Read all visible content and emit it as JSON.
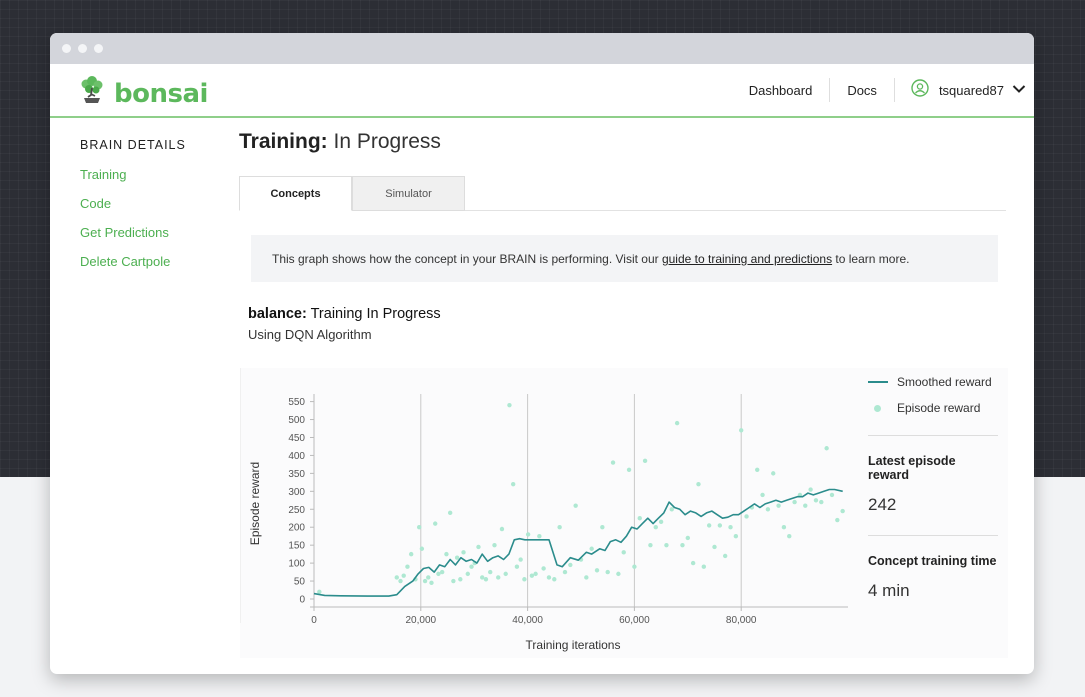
{
  "app": {
    "logo_text": "bonsai",
    "logo_icon": "bonsai-tree-icon",
    "brand_color": "#5cb85c"
  },
  "nav": {
    "dashboard": "Dashboard",
    "docs": "Docs",
    "username": "tsquared87",
    "user_icon": "user-circle-icon",
    "dropdown_icon": "chevron-down-icon"
  },
  "sidebar": {
    "title": "BRAIN DETAILS",
    "items": [
      {
        "label": "Training"
      },
      {
        "label": "Code"
      },
      {
        "label": "Get Predictions"
      },
      {
        "label": "Delete Cartpole"
      }
    ]
  },
  "page": {
    "title_bold": "Training:",
    "title_rest": " In Progress",
    "tabs": [
      {
        "label": "Concepts",
        "active": true
      },
      {
        "label": "Simulator",
        "active": false
      }
    ],
    "info_text_before": "This graph shows how the concept in your BRAIN is performing. Visit our ",
    "info_link": "guide to training and predictions",
    "info_text_after": " to learn more.",
    "concept_name": "balance:",
    "concept_status": " Training In Progress",
    "algorithm": "Using DQN Algorithm"
  },
  "stats": {
    "latest_label": "Latest episode reward",
    "latest_value": "242",
    "time_label": "Concept training time",
    "time_value": "4 min"
  },
  "chart_data": {
    "type": "line",
    "xlabel": "Training iterations",
    "ylabel": "Episode reward",
    "xlim": [
      0,
      100000
    ],
    "ylim": [
      0,
      560
    ],
    "x_ticks": [
      0,
      20000,
      40000,
      60000,
      80000
    ],
    "x_tick_labels": [
      "0",
      "20,000",
      "40,000",
      "60,000",
      "80,000"
    ],
    "y_ticks": [
      0,
      50,
      100,
      150,
      200,
      250,
      300,
      350,
      400,
      450,
      500,
      550
    ],
    "y_tick_labels": [
      "0",
      "50",
      "100",
      "150",
      "200",
      "250",
      "300",
      "350",
      "400",
      "450",
      "500",
      "550"
    ],
    "vertical_gridlines": [
      20000,
      40000,
      60000,
      80000
    ],
    "legend_position": "right",
    "series": [
      {
        "name": "Smoothed reward",
        "kind": "line",
        "color": "#2b8c8c",
        "x": [
          0,
          2000,
          5000,
          10000,
          14000,
          15500,
          17000,
          18500,
          19500,
          20500,
          21500,
          22500,
          23500,
          24500,
          25500,
          26500,
          27500,
          28500,
          29500,
          30500,
          31500,
          32500,
          33500,
          34500,
          35500,
          36500,
          37500,
          38500,
          39500,
          40500,
          42000,
          44000,
          45500,
          46500,
          48000,
          49500,
          51000,
          52000,
          53500,
          54500,
          55500,
          56500,
          57500,
          58500,
          59500,
          60500,
          61500,
          62500,
          63500,
          64500,
          65500,
          66500,
          67500,
          68500,
          69500,
          70500,
          71500,
          72500,
          73500,
          74500,
          75500,
          76500,
          77500,
          78500,
          79500,
          80500,
          81500,
          82500,
          83500,
          84500,
          85500,
          86500,
          87500,
          88500,
          89500,
          90500,
          91500,
          92500,
          93500,
          94500,
          95500,
          96500,
          97500,
          99000
        ],
        "y": [
          15,
          10,
          9,
          8,
          8,
          12,
          35,
          50,
          70,
          85,
          88,
          75,
          95,
          90,
          110,
          95,
          115,
          105,
          110,
          100,
          125,
          105,
          115,
          120,
          110,
          125,
          165,
          168,
          165,
          165,
          165,
          165,
          95,
          90,
          115,
          108,
          130,
          125,
          140,
          135,
          160,
          165,
          158,
          175,
          200,
          195,
          210,
          225,
          210,
          225,
          240,
          270,
          255,
          250,
          235,
          245,
          240,
          230,
          240,
          245,
          235,
          225,
          228,
          235,
          235,
          245,
          255,
          265,
          255,
          265,
          270,
          275,
          270,
          275,
          280,
          285,
          285,
          295,
          290,
          295,
          300,
          305,
          305,
          300
        ]
      },
      {
        "name": "Episode reward",
        "kind": "scatter",
        "color": "#aee8d2",
        "x": [
          1000,
          15500,
          16200,
          16800,
          17500,
          18200,
          19000,
          19700,
          20200,
          20800,
          21400,
          22000,
          22700,
          23300,
          24000,
          24800,
          25500,
          26100,
          26800,
          27400,
          28000,
          28800,
          29500,
          30100,
          30800,
          31500,
          32200,
          33000,
          33800,
          34500,
          35200,
          35900,
          36600,
          37300,
          38000,
          38700,
          39400,
          40100,
          40800,
          41500,
          42200,
          43000,
          44000,
          45000,
          46000,
          47000,
          48000,
          49000,
          50000,
          51000,
          52000,
          53000,
          54000,
          55000,
          56000,
          57000,
          58000,
          59000,
          60000,
          61000,
          62000,
          63000,
          64000,
          65000,
          66000,
          67000,
          68000,
          69000,
          70000,
          71000,
          72000,
          73000,
          74000,
          75000,
          76000,
          77000,
          78000,
          79000,
          80000,
          81000,
          82000,
          83000,
          84000,
          85000,
          86000,
          87000,
          88000,
          89000,
          90000,
          91000,
          92000,
          93000,
          94000,
          95000,
          96000,
          97000,
          98000,
          99000
        ],
        "y": [
          20,
          60,
          50,
          65,
          90,
          125,
          55,
          200,
          140,
          50,
          60,
          45,
          210,
          70,
          75,
          125,
          240,
          50,
          115,
          55,
          130,
          70,
          90,
          100,
          145,
          60,
          55,
          75,
          150,
          60,
          195,
          70,
          540,
          320,
          90,
          110,
          55,
          180,
          65,
          70,
          175,
          85,
          60,
          55,
          200,
          75,
          95,
          260,
          110,
          60,
          140,
          80,
          200,
          75,
          380,
          70,
          130,
          360,
          90,
          225,
          385,
          150,
          200,
          215,
          150,
          250,
          490,
          150,
          170,
          100,
          320,
          90,
          205,
          145,
          205,
          120,
          200,
          175,
          470,
          230,
          255,
          360,
          290,
          250,
          350,
          260,
          200,
          175,
          270,
          290,
          260,
          305,
          275,
          270,
          420,
          290,
          220,
          245
        ]
      }
    ]
  }
}
